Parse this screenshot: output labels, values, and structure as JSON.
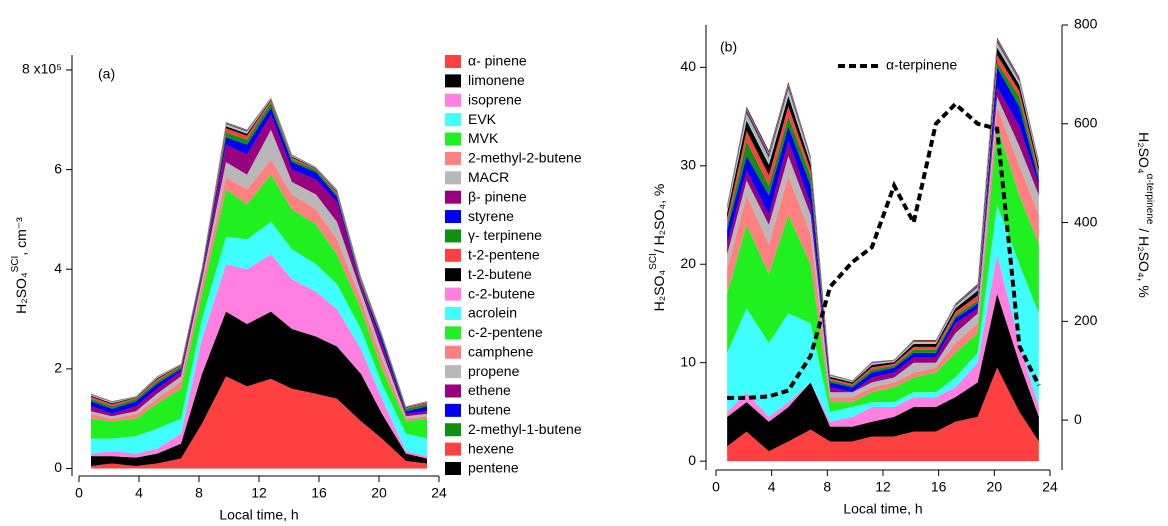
{
  "chart_data": [
    {
      "type": "area",
      "panel": "(a)",
      "xlabel": "Local time, h",
      "ylabel": [
        "H₂SO₄",
        "SCI",
        ", cm⁻³"
      ],
      "x": [
        0.8,
        2.2,
        3.8,
        5.2,
        6.8,
        8.2,
        9.8,
        11.2,
        12.8,
        14.2,
        15.8,
        17.2,
        18.8,
        20.2,
        21.8,
        23.2
      ],
      "xlim": [
        0,
        24
      ],
      "xticks": [
        0,
        4,
        8,
        12,
        16,
        20,
        24
      ],
      "ylim": [
        -0.15,
        8.3
      ],
      "yticks": [
        0,
        2,
        4,
        6,
        {
          "value": 8,
          "label": "8 x10⁵"
        }
      ],
      "stacked": true,
      "legend": "right",
      "series": [
        {
          "name": "α- pinene",
          "color": "#ff4040",
          "values": [
            0.05,
            0.1,
            0.05,
            0.1,
            0.2,
            0.9,
            1.85,
            1.65,
            1.8,
            1.6,
            1.5,
            1.4,
            0.95,
            0.6,
            0.15,
            0.1
          ]
        },
        {
          "name": "limonene",
          "color": "#000000",
          "values": [
            0.2,
            0.15,
            0.17,
            0.2,
            0.3,
            1.0,
            1.3,
            1.25,
            1.35,
            1.2,
            1.15,
            1.05,
            0.95,
            0.5,
            0.15,
            0.1
          ]
        },
        {
          "name": "isoprene",
          "color": "#ff80e0",
          "values": [
            0.05,
            0.1,
            0.08,
            0.1,
            0.2,
            0.7,
            0.95,
            1.1,
            1.15,
            1.0,
            0.9,
            0.75,
            0.5,
            0.3,
            0.05,
            0.05
          ]
        },
        {
          "name": "EVK",
          "color": "#40ffff",
          "values": [
            0.3,
            0.25,
            0.35,
            0.4,
            0.3,
            0.4,
            0.55,
            0.6,
            0.65,
            0.6,
            0.55,
            0.5,
            0.4,
            0.3,
            0.35,
            0.35
          ]
        },
        {
          "name": "MVK",
          "color": "#20f020",
          "values": [
            0.4,
            0.35,
            0.35,
            0.5,
            0.6,
            0.5,
            0.95,
            0.7,
            0.95,
            0.8,
            0.8,
            0.6,
            0.4,
            0.3,
            0.25,
            0.4
          ]
        },
        {
          "name": "2-methyl-2-butene",
          "color": "#ff8080",
          "values": [
            0.1,
            0.05,
            0.1,
            0.1,
            0.15,
            0.2,
            0.25,
            0.3,
            0.3,
            0.3,
            0.3,
            0.3,
            0.2,
            0.2,
            0.05,
            0.05
          ]
        },
        {
          "name": "MACR",
          "color": "#b8b8b8",
          "values": [
            0.05,
            0.05,
            0.05,
            0.1,
            0.1,
            0.1,
            0.3,
            0.3,
            0.6,
            0.25,
            0.3,
            0.35,
            0.15,
            0.15,
            0.05,
            0.05
          ]
        },
        {
          "name": "β- pinene",
          "color": "#990080",
          "values": [
            0.1,
            0.05,
            0.1,
            0.1,
            0.1,
            0.1,
            0.35,
            0.4,
            0.3,
            0.25,
            0.3,
            0.4,
            0.1,
            0.15,
            0.05,
            0.05
          ]
        },
        {
          "name": "styrene",
          "color": "#0000f0",
          "values": [
            0.1,
            0.1,
            0.1,
            0.1,
            0.05,
            0.05,
            0.15,
            0.2,
            0.15,
            0.15,
            0.15,
            0.1,
            0.05,
            0.1,
            0.05,
            0.1
          ]
        },
        {
          "name": "γ- terpinene",
          "color": "#109010",
          "values": [
            0.05,
            0.05,
            0.05,
            0.05,
            0.05,
            0.05,
            0.1,
            0.1,
            0.1,
            0.05,
            0.05,
            0.05,
            0.05,
            0.05,
            0.05,
            0.05
          ]
        },
        {
          "name": "t-2-pentene",
          "color": "#ff4040",
          "values": [
            0.04,
            0.04,
            0.02,
            0.04,
            0.02,
            0.02,
            0.08,
            0.08,
            0.04,
            0.04,
            0.02,
            0.04,
            0.04,
            0.02,
            0.02,
            0.02
          ]
        },
        {
          "name": "t-2-butene",
          "color": "#000000",
          "values": [
            0.02,
            0.02,
            0.01,
            0.02,
            0.01,
            0.01,
            0.04,
            0.04,
            0.02,
            0.02,
            0.01,
            0.02,
            0.02,
            0.01,
            0.01,
            0.01
          ]
        },
        {
          "name": "c-2-butene",
          "color": "#ff80e0",
          "values": [
            0.004,
            0.004,
            0.002,
            0.004,
            0.002,
            0.002,
            0.008,
            0.008,
            0.004,
            0.004,
            0.002,
            0.004,
            0.004,
            0.002,
            0.002,
            0.002
          ]
        },
        {
          "name": "acrolein",
          "color": "#40ffff",
          "values": [
            0.004,
            0.004,
            0.002,
            0.004,
            0.002,
            0.002,
            0.008,
            0.008,
            0.004,
            0.004,
            0.002,
            0.004,
            0.004,
            0.002,
            0.002,
            0.002
          ]
        },
        {
          "name": "c-2-pentene",
          "color": "#20f020",
          "values": [
            0.004,
            0.004,
            0.002,
            0.004,
            0.002,
            0.002,
            0.008,
            0.008,
            0.004,
            0.004,
            0.002,
            0.004,
            0.004,
            0.002,
            0.002,
            0.002
          ]
        },
        {
          "name": "camphene",
          "color": "#ff8080",
          "values": [
            0.004,
            0.004,
            0.002,
            0.004,
            0.002,
            0.002,
            0.008,
            0.008,
            0.004,
            0.004,
            0.002,
            0.004,
            0.004,
            0.002,
            0.002,
            0.002
          ]
        },
        {
          "name": "propene",
          "color": "#b8b8b8",
          "values": [
            0.004,
            0.004,
            0.002,
            0.004,
            0.002,
            0.002,
            0.008,
            0.008,
            0.004,
            0.004,
            0.002,
            0.004,
            0.004,
            0.002,
            0.002,
            0.002
          ]
        },
        {
          "name": "ethene",
          "color": "#990080",
          "values": [
            0.004,
            0.004,
            0.002,
            0.004,
            0.002,
            0.002,
            0.008,
            0.008,
            0.004,
            0.004,
            0.002,
            0.004,
            0.004,
            0.002,
            0.002,
            0.002
          ]
        },
        {
          "name": "butene",
          "color": "#0000f0",
          "values": [
            0.004,
            0.004,
            0.002,
            0.004,
            0.002,
            0.002,
            0.008,
            0.008,
            0.004,
            0.004,
            0.002,
            0.004,
            0.004,
            0.002,
            0.002,
            0.002
          ]
        },
        {
          "name": "2-methyl-1-butene",
          "color": "#109010",
          "values": [
            0.004,
            0.004,
            0.002,
            0.004,
            0.002,
            0.002,
            0.008,
            0.008,
            0.004,
            0.004,
            0.002,
            0.004,
            0.004,
            0.002,
            0.002,
            0.002
          ]
        },
        {
          "name": "hexene",
          "color": "#ff4040",
          "values": [
            0.004,
            0.004,
            0.002,
            0.004,
            0.002,
            0.002,
            0.008,
            0.008,
            0.004,
            0.004,
            0.002,
            0.004,
            0.004,
            0.002,
            0.002,
            0.002
          ]
        },
        {
          "name": "pentene",
          "color": "#000000",
          "values": [
            0.004,
            0.004,
            0.002,
            0.004,
            0.002,
            0.002,
            0.008,
            0.008,
            0.004,
            0.004,
            0.002,
            0.004,
            0.004,
            0.002,
            0.002,
            0.002
          ]
        }
      ]
    },
    {
      "type": "area",
      "panel": "(b)",
      "xlabel": "Local time, h",
      "ylabel": [
        "H₂SO₄",
        "SCI",
        "/ H₂SO₄, %"
      ],
      "y2label": [
        "H₂SO₄",
        "α-terpinene",
        " / H₂SO₄, %"
      ],
      "x": [
        0.8,
        2.2,
        3.8,
        5.2,
        6.8,
        8.2,
        9.8,
        11.2,
        12.8,
        14.2,
        15.8,
        17.2,
        18.8,
        20.2,
        21.8,
        23.2
      ],
      "xlim": [
        0,
        24
      ],
      "xticks": [
        0,
        4,
        8,
        12,
        16,
        20,
        24
      ],
      "ylim": [
        -0.9,
        44.3
      ],
      "yticks": [
        0,
        10,
        20,
        30,
        40
      ],
      "y2lim": [
        -101,
        800
      ],
      "y2ticks": [
        0,
        200,
        400,
        600,
        800
      ],
      "stacked": true,
      "series": [
        {
          "color": "#ff4040",
          "values": [
            1.5,
            3,
            1,
            2,
            3.2,
            2,
            2,
            2.5,
            2.5,
            3,
            3,
            4,
            4.5,
            9.5,
            5,
            2
          ]
        },
        {
          "color": "#000000",
          "values": [
            3,
            3,
            3,
            3.5,
            4.8,
            1.5,
            1.5,
            1.5,
            2,
            2.5,
            2.5,
            2.5,
            3.5,
            7.5,
            5,
            2.5
          ]
        },
        {
          "color": "#ff80e0",
          "values": [
            0.5,
            1,
            0.5,
            0.5,
            0,
            0.5,
            1,
            1.5,
            1,
            1,
            1,
            1,
            2,
            4,
            2,
            1
          ]
        },
        {
          "color": "#40ffff",
          "values": [
            6,
            8.5,
            7.5,
            9,
            6,
            1,
            1,
            0.5,
            0.5,
            0.5,
            0.5,
            1,
            1,
            5,
            8,
            9.5
          ]
        },
        {
          "color": "#20f020",
          "values": [
            6,
            8.5,
            7,
            10,
            6,
            1,
            0.5,
            1,
            1.5,
            1.5,
            2,
            2.5,
            2,
            8,
            7,
            7
          ]
        },
        {
          "color": "#ff8080",
          "values": [
            2.5,
            3,
            3,
            4,
            3,
            0.5,
            0.5,
            0.5,
            0.5,
            0.5,
            0.5,
            1,
            1,
            2,
            3,
            3
          ]
        },
        {
          "color": "#b8b8b8",
          "values": [
            1.5,
            1.5,
            2,
            2,
            2,
            0.5,
            0.5,
            0.5,
            0.5,
            1,
            0.5,
            1,
            1,
            1,
            2,
            2
          ]
        },
        {
          "color": "#990080",
          "values": [
            1,
            1,
            1,
            1.5,
            1,
            0.5,
            0,
            0.5,
            0.5,
            0.5,
            0.5,
            1,
            0.5,
            1,
            2,
            1
          ]
        },
        {
          "color": "#0000f0",
          "values": [
            1.5,
            1.5,
            2,
            1.5,
            2,
            0.5,
            0.5,
            0.5,
            0.5,
            0.5,
            0.5,
            0.5,
            0.5,
            2,
            2,
            0.5
          ]
        },
        {
          "color": "#109010",
          "values": [
            0.5,
            1.5,
            1,
            1,
            1,
            0.2,
            0.2,
            0.3,
            0.2,
            0.3,
            0.3,
            0.3,
            0.3,
            0.5,
            1,
            0.5
          ]
        },
        {
          "color": "#ff4040",
          "values": [
            0.6,
            1.05,
            1.05,
            1.05,
            0.6,
            0.18,
            0.15,
            0.24,
            0.18,
            0.3,
            0.3,
            0.36,
            0.51,
            0.75,
            0.6,
            0.45
          ]
        },
        {
          "color": "#000000",
          "values": [
            0.6,
            1.05,
            1.05,
            1.05,
            0.6,
            0.18,
            0.15,
            0.24,
            0.18,
            0.3,
            0.3,
            0.36,
            0.51,
            0.75,
            0.6,
            0.45
          ]
        },
        {
          "color": "#ff80e0",
          "values": [
            0.08,
            0.14,
            0.14,
            0.14,
            0.08,
            0.024,
            0.02,
            0.032,
            0.024,
            0.04,
            0.04,
            0.048,
            0.068,
            0.1,
            0.08,
            0.06
          ]
        },
        {
          "color": "#40ffff",
          "values": [
            0.08,
            0.14,
            0.14,
            0.14,
            0.08,
            0.024,
            0.02,
            0.032,
            0.024,
            0.04,
            0.04,
            0.048,
            0.068,
            0.1,
            0.08,
            0.06
          ]
        },
        {
          "color": "#20f020",
          "values": [
            0.08,
            0.14,
            0.14,
            0.14,
            0.08,
            0.024,
            0.02,
            0.032,
            0.024,
            0.04,
            0.04,
            0.048,
            0.068,
            0.1,
            0.08,
            0.06
          ]
        },
        {
          "color": "#ff8080",
          "values": [
            0.08,
            0.14,
            0.14,
            0.14,
            0.08,
            0.024,
            0.02,
            0.032,
            0.024,
            0.04,
            0.04,
            0.048,
            0.068,
            0.1,
            0.08,
            0.06
          ]
        },
        {
          "color": "#b8b8b8",
          "values": [
            0.08,
            0.14,
            0.14,
            0.14,
            0.08,
            0.024,
            0.02,
            0.032,
            0.024,
            0.04,
            0.04,
            0.048,
            0.068,
            0.1,
            0.08,
            0.06
          ]
        },
        {
          "color": "#990080",
          "values": [
            0.08,
            0.14,
            0.14,
            0.14,
            0.08,
            0.024,
            0.02,
            0.032,
            0.024,
            0.04,
            0.04,
            0.048,
            0.068,
            0.1,
            0.08,
            0.06
          ]
        },
        {
          "color": "#0000f0",
          "values": [
            0.08,
            0.14,
            0.14,
            0.14,
            0.08,
            0.024,
            0.02,
            0.032,
            0.024,
            0.04,
            0.04,
            0.048,
            0.068,
            0.1,
            0.08,
            0.06
          ]
        },
        {
          "color": "#109010",
          "values": [
            0.08,
            0.14,
            0.14,
            0.14,
            0.08,
            0.024,
            0.02,
            0.032,
            0.024,
            0.04,
            0.04,
            0.048,
            0.068,
            0.1,
            0.08,
            0.06
          ]
        },
        {
          "color": "#ff4040",
          "values": [
            0.08,
            0.14,
            0.14,
            0.14,
            0.08,
            0.024,
            0.02,
            0.032,
            0.024,
            0.04,
            0.04,
            0.048,
            0.068,
            0.1,
            0.08,
            0.06
          ]
        },
        {
          "color": "#000000",
          "values": [
            0.08,
            0.14,
            0.14,
            0.14,
            0.08,
            0.024,
            0.02,
            0.032,
            0.024,
            0.04,
            0.04,
            0.048,
            0.068,
            0.1,
            0.08,
            0.06
          ]
        }
      ],
      "lines": [
        {
          "name": "α-terpinene",
          "color": "#000000",
          "dashed": true,
          "axis": "y2",
          "values": [
            45,
            45,
            48,
            60,
            130,
            270,
            320,
            350,
            475,
            400,
            600,
            640,
            600,
            590,
            150,
            70
          ]
        }
      ]
    }
  ]
}
